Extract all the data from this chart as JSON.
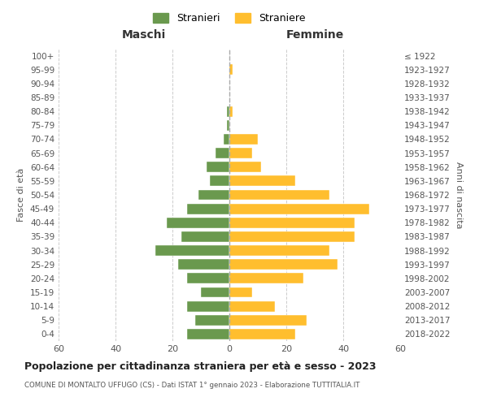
{
  "age_groups": [
    "0-4",
    "5-9",
    "10-14",
    "15-19",
    "20-24",
    "25-29",
    "30-34",
    "35-39",
    "40-44",
    "45-49",
    "50-54",
    "55-59",
    "60-64",
    "65-69",
    "70-74",
    "75-79",
    "80-84",
    "85-89",
    "90-94",
    "95-99",
    "100+"
  ],
  "birth_years": [
    "2018-2022",
    "2013-2017",
    "2008-2012",
    "2003-2007",
    "1998-2002",
    "1993-1997",
    "1988-1992",
    "1983-1987",
    "1978-1982",
    "1973-1977",
    "1968-1972",
    "1963-1967",
    "1958-1962",
    "1953-1957",
    "1948-1952",
    "1943-1947",
    "1938-1942",
    "1933-1937",
    "1928-1932",
    "1923-1927",
    "≤ 1922"
  ],
  "maschi": [
    15,
    12,
    15,
    10,
    15,
    18,
    26,
    17,
    22,
    15,
    11,
    7,
    8,
    5,
    2,
    1,
    1,
    0,
    0,
    0,
    0
  ],
  "femmine": [
    23,
    27,
    16,
    8,
    26,
    38,
    35,
    44,
    44,
    49,
    35,
    23,
    11,
    8,
    10,
    0,
    1,
    0,
    0,
    1,
    0
  ],
  "maschi_color": "#6a994e",
  "femmine_color": "#ffbe2e",
  "background_color": "#ffffff",
  "grid_color": "#cccccc",
  "title": "Popolazione per cittadinanza straniera per età e sesso - 2023",
  "subtitle": "COMUNE DI MONTALTO UFFUGO (CS) - Dati ISTAT 1° gennaio 2023 - Elaborazione TUTTITALIA.IT",
  "xlabel_left": "Maschi",
  "xlabel_right": "Femmine",
  "ylabel_left": "Fasce di età",
  "ylabel_right": "Anni di nascita",
  "legend_stranieri": "Stranieri",
  "legend_straniere": "Straniere",
  "xlim": 60
}
